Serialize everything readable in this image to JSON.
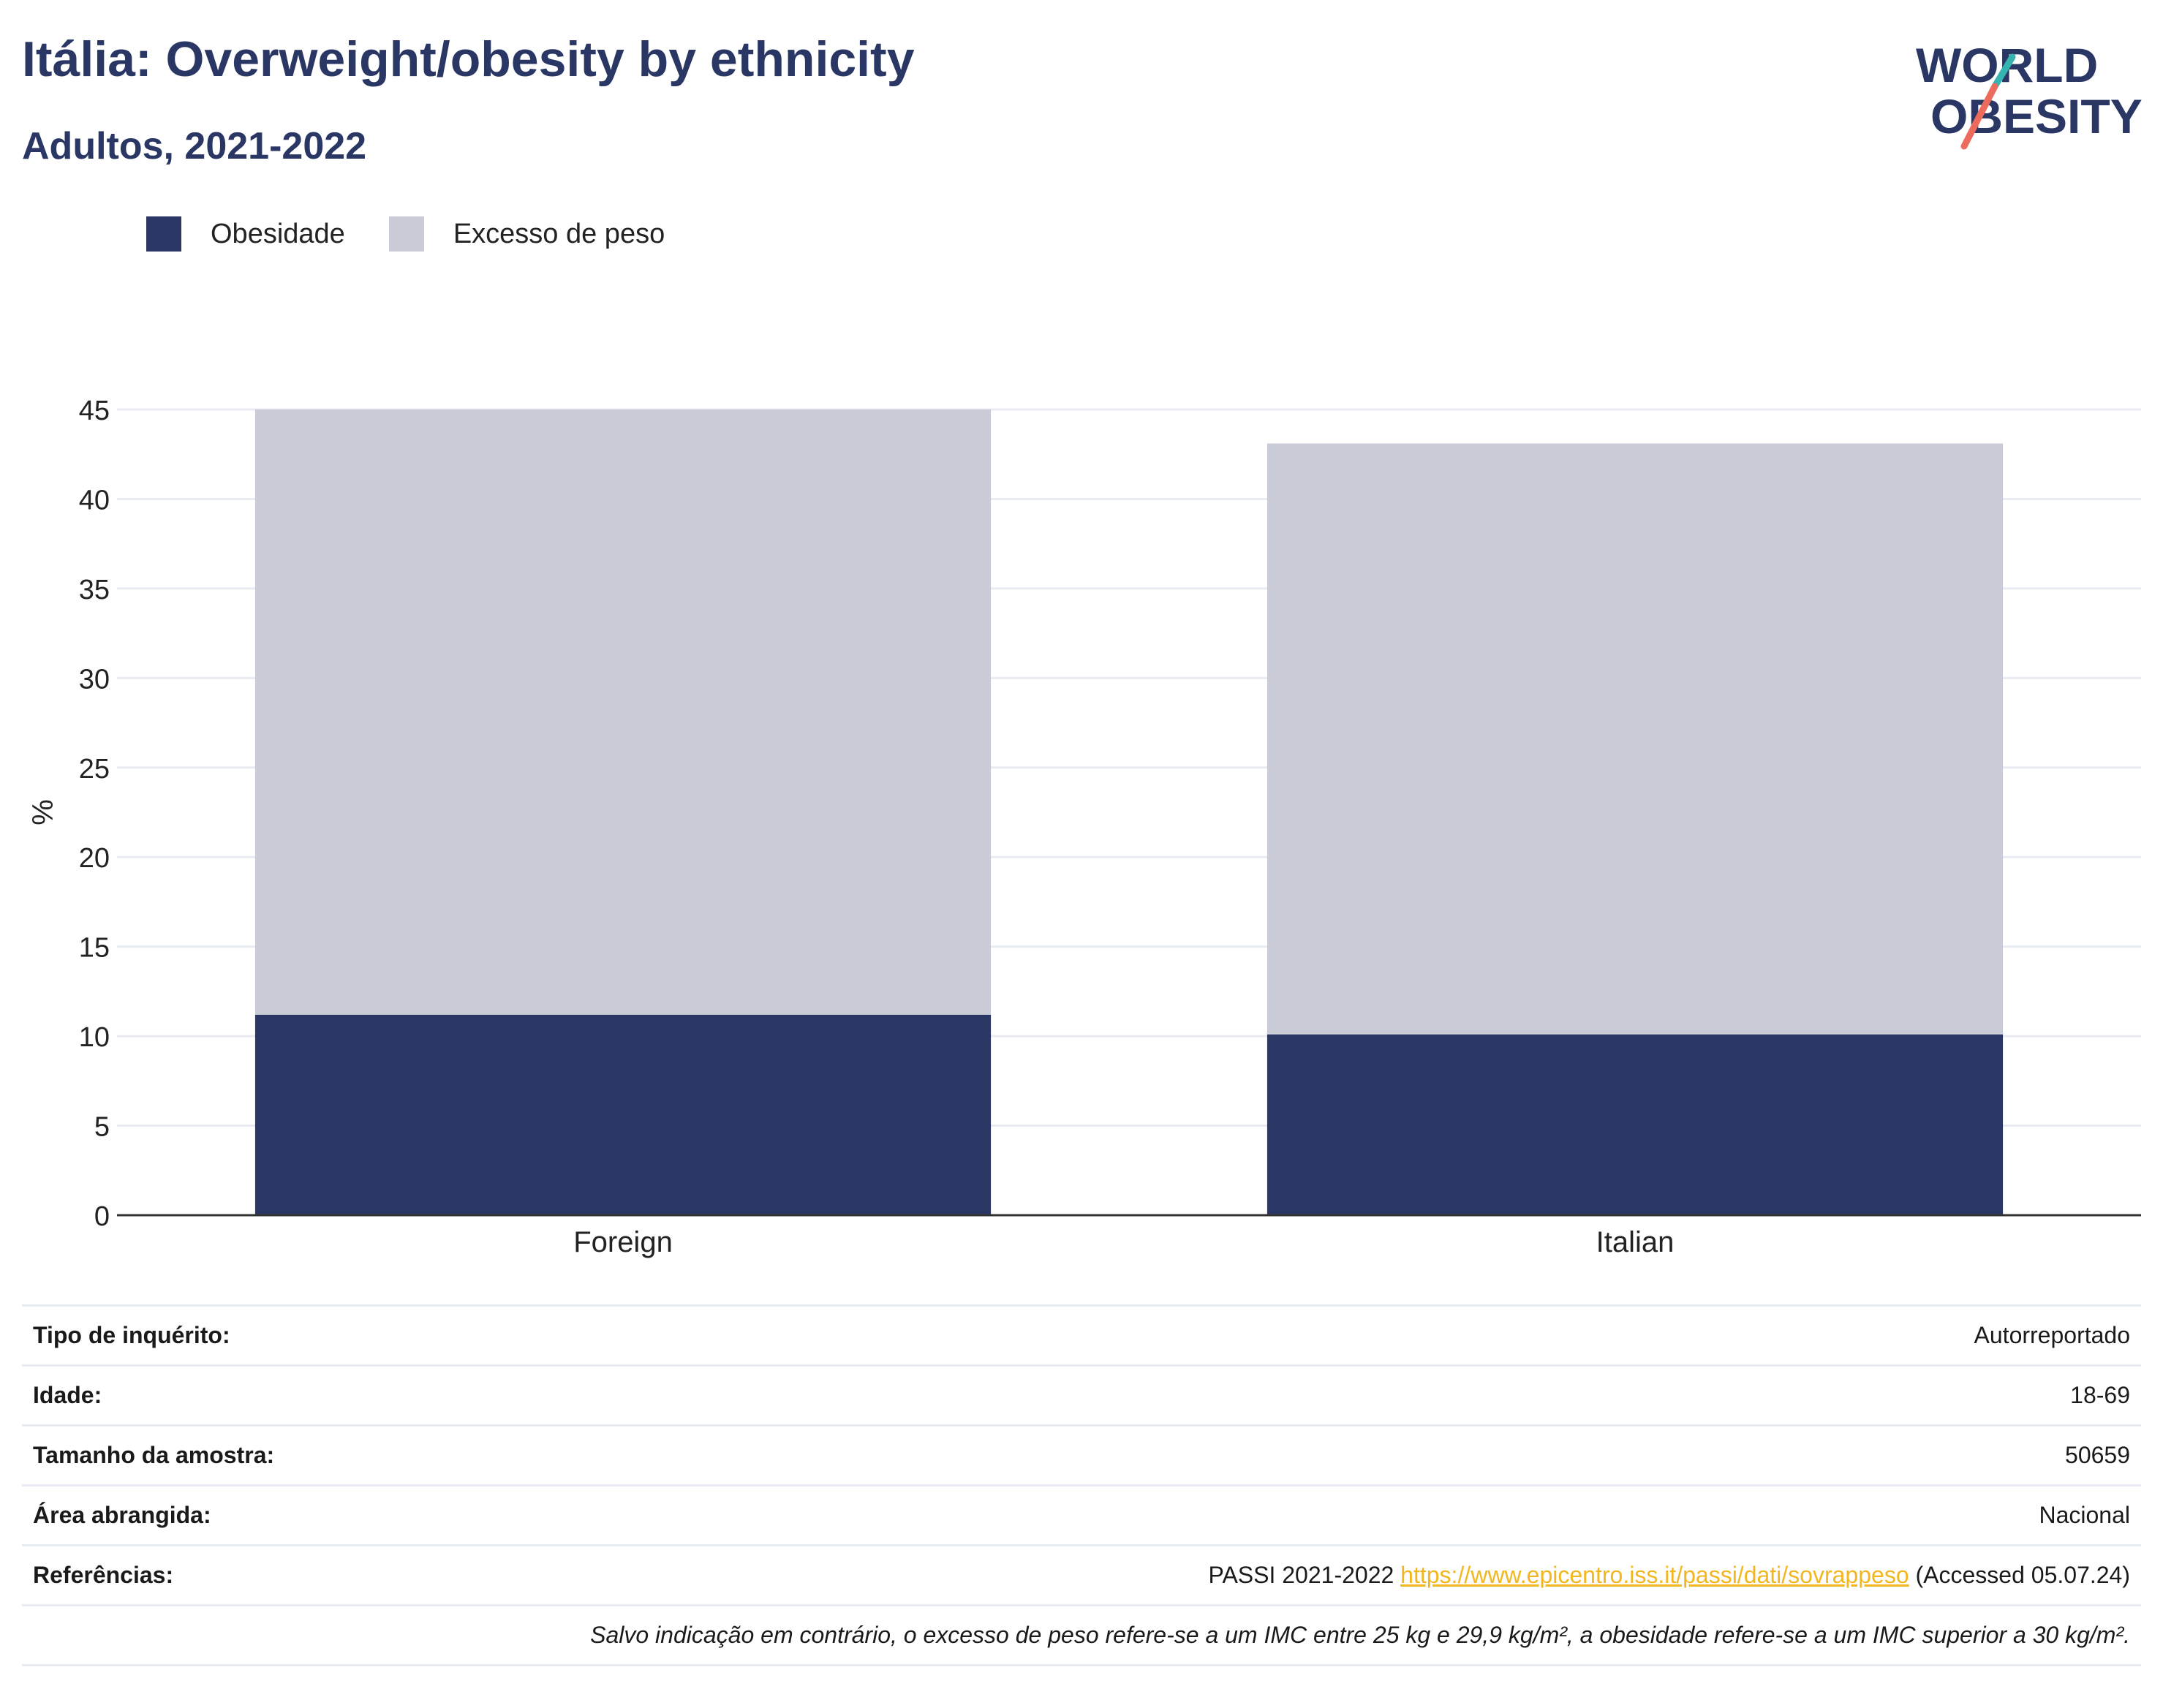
{
  "header": {
    "title": "Itália: Overweight/obesity by ethnicity",
    "subtitle": "Adultos, 2021-2022",
    "logo_line1": "WORLD",
    "logo_line2": "OBESITY"
  },
  "legend": {
    "obesity_label": "Obesidade",
    "overweight_label": "Excesso de peso"
  },
  "colors": {
    "obesity": "#2a3764",
    "overweight": "#c9ccd7",
    "grid": "#e8ebf2",
    "axis": "#333333",
    "logo_teal": "#36b5b0",
    "logo_coral": "#ec6b5c"
  },
  "chart_data": {
    "type": "bar",
    "stacked": true,
    "categories": [
      "Foreign",
      "Italian"
    ],
    "series": [
      {
        "name": "Obesidade",
        "values": [
          11.2,
          10.1
        ]
      },
      {
        "name": "Excesso de peso",
        "values": [
          33.8,
          33.0
        ]
      }
    ],
    "ylabel": "%",
    "xlabel": "",
    "ylim": [
      0,
      45
    ],
    "yticks": [
      0,
      5,
      10,
      15,
      20,
      25,
      30,
      35,
      40,
      45
    ],
    "grid": true,
    "legend_position": "top-left"
  },
  "info": {
    "survey_type_label": "Tipo de inquérito:",
    "survey_type_value": "Autorreportado",
    "age_label": "Idade:",
    "age_value": "18-69",
    "sample_size_label": "Tamanho da amostra:",
    "sample_size_value": "50659",
    "area_label": "Área abrangida:",
    "area_value": "Nacional",
    "references_label": "Referências:",
    "references_prefix": "PASSI 2021-2022 ",
    "references_link": "https://www.epicentro.iss.it/passi/dati/sovrappeso",
    "references_suffix": " (Accessed 05.07.24)",
    "note": "Salvo indicação em contrário, o excesso de peso refere-se a um IMC entre 25 kg e 29,9 kg/m², a obesidade refere-se a um IMC superior a 30 kg/m²."
  }
}
